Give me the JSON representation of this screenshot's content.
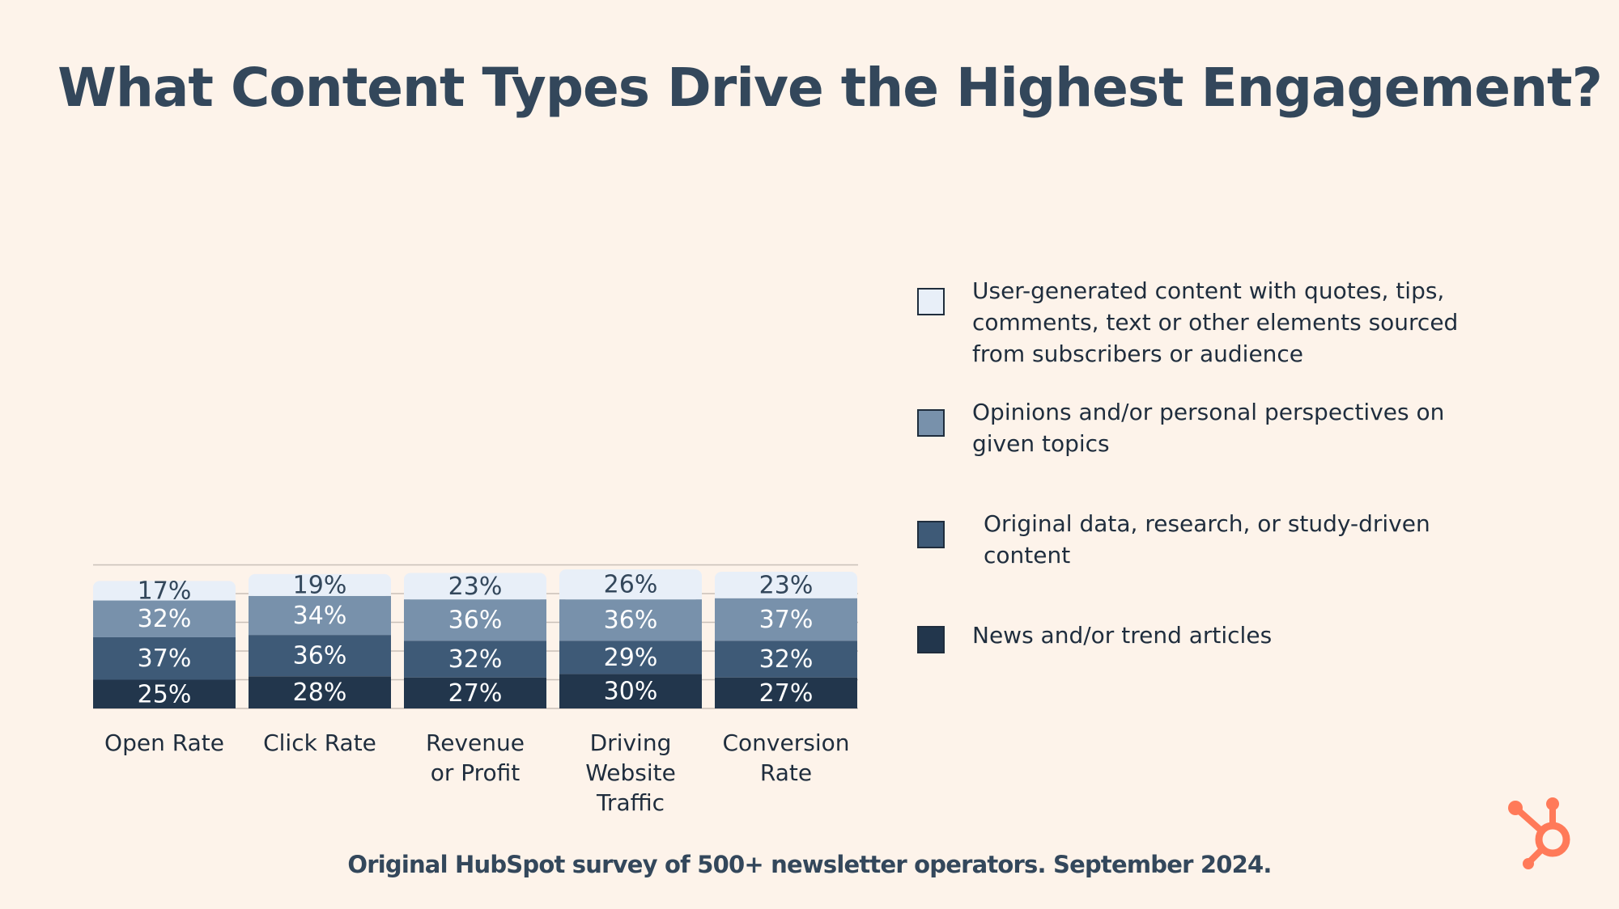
{
  "title": "What Content Types Drive the Highest Engagement?",
  "chart_data": {
    "type": "bar",
    "stacked": true,
    "categories": [
      [
        "Open Rate"
      ],
      [
        "Click Rate"
      ],
      [
        "Revenue",
        "or Profit"
      ],
      [
        "Driving",
        "Website",
        "Traffic"
      ],
      [
        "Conversion",
        "Rate"
      ]
    ],
    "series": [
      {
        "name": "News and/or trend articles",
        "values": [
          25,
          28,
          27,
          30,
          27
        ],
        "color": "#22364c",
        "text_color": "#ffffff"
      },
      {
        "name": "Original data, research, or study-driven content",
        "values": [
          37,
          36,
          32,
          29,
          32
        ],
        "color": "#3e5a77",
        "text_color": "#ffffff"
      },
      {
        "name": "Opinions and/or personal perspectives on given topics",
        "values": [
          32,
          34,
          36,
          36,
          37
        ],
        "color": "#7891ab",
        "text_color": "#ffffff"
      },
      {
        "name": "User-generated content with quotes, tips, comments, text or other elements sourced from subscribers or audience",
        "values": [
          17,
          19,
          23,
          26,
          23
        ],
        "color": "#e8eff8",
        "text_color": "#33475b"
      }
    ],
    "value_suffix": "%",
    "xlabel": "",
    "ylabel": "",
    "ylim": [
      0,
      125
    ],
    "grid": true,
    "legend_position": "right"
  },
  "legend": {
    "items": [
      {
        "label": "User-generated content with quotes, tips, comments, text or other elements sourced from subscribers or audience",
        "color": "#e8eff8"
      },
      {
        "label": "Opinions and/or personal perspectives on given topics",
        "color": "#7891ab"
      },
      {
        "label": "Original data, research, or study-driven content",
        "color": "#3e5a77"
      },
      {
        "label": "News and/or trend articles",
        "color": "#22364c"
      }
    ]
  },
  "footer": "Original HubSpot survey of 500+ newsletter operators. September 2024.",
  "logo": {
    "icon": "hubspot-sprocket-icon",
    "color": "#ff7a59"
  }
}
